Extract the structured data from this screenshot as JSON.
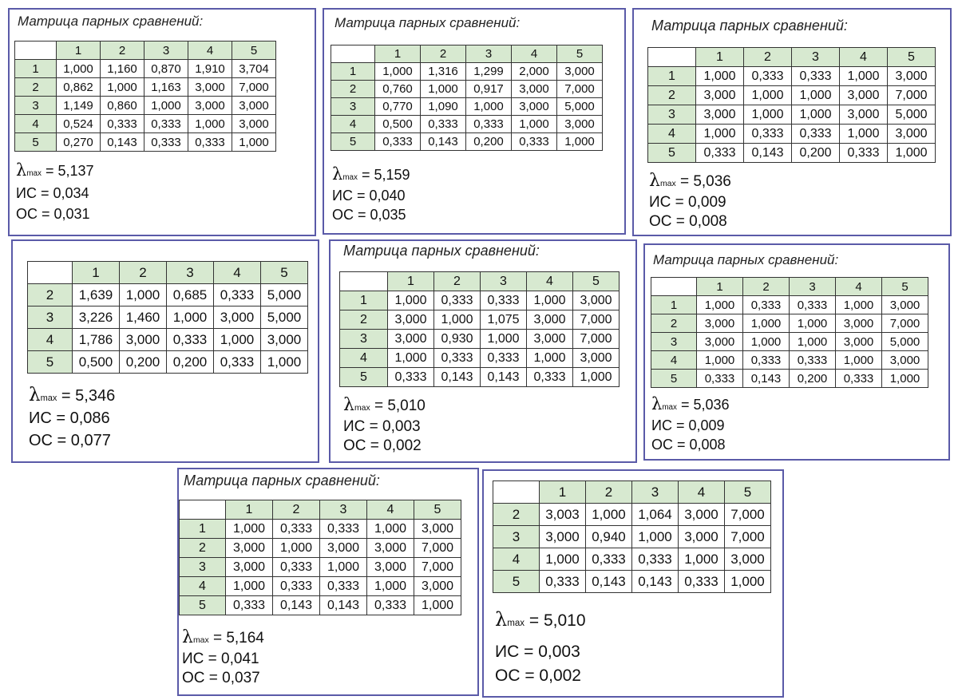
{
  "panels": [
    {
      "title": "Матрица парных сравнений:",
      "header": [
        "1",
        "2",
        "3",
        "4",
        "5"
      ],
      "rows": [
        {
          "label": "1",
          "cells": [
            "1,000",
            "1,160",
            "0,870",
            "1,910",
            "3,704"
          ]
        },
        {
          "label": "2",
          "cells": [
            "0,862",
            "1,000",
            "1,163",
            "3,000",
            "7,000"
          ]
        },
        {
          "label": "3",
          "cells": [
            "1,149",
            "0,860",
            "1,000",
            "3,000",
            "3,000"
          ]
        },
        {
          "label": "4",
          "cells": [
            "0,524",
            "0,333",
            "0,333",
            "1,000",
            "3,000"
          ]
        },
        {
          "label": "5",
          "cells": [
            "0,270",
            "0,143",
            "0,333",
            "0,333",
            "1,000"
          ]
        }
      ],
      "lambda_symbol": "λ",
      "lambda_sub": "max",
      "lambda": "= 5,137",
      "is": "ИС = 0,034",
      "os": "ОС = 0,031"
    },
    {
      "title": "Матрица парных сравнений:",
      "header": [
        "1",
        "2",
        "3",
        "4",
        "5"
      ],
      "rows": [
        {
          "label": "1",
          "cells": [
            "1,000",
            "1,316",
            "1,299",
            "2,000",
            "3,000"
          ]
        },
        {
          "label": "2",
          "cells": [
            "0,760",
            "1,000",
            "0,917",
            "3,000",
            "7,000"
          ]
        },
        {
          "label": "3",
          "cells": [
            "0,770",
            "1,090",
            "1,000",
            "3,000",
            "5,000"
          ]
        },
        {
          "label": "4",
          "cells": [
            "0,500",
            "0,333",
            "0,333",
            "1,000",
            "3,000"
          ]
        },
        {
          "label": "5",
          "cells": [
            "0,333",
            "0,143",
            "0,200",
            "0,333",
            "1,000"
          ]
        }
      ],
      "lambda_symbol": "λ",
      "lambda_sub": "max",
      "lambda": "= 5,159",
      "is": "ИС = 0,040",
      "os": "ОС = 0,035"
    },
    {
      "title": "Матрица парных сравнений:",
      "header": [
        "1",
        "2",
        "3",
        "4",
        "5"
      ],
      "rows": [
        {
          "label": "1",
          "cells": [
            "1,000",
            "0,333",
            "0,333",
            "1,000",
            "3,000"
          ]
        },
        {
          "label": "2",
          "cells": [
            "3,000",
            "1,000",
            "1,000",
            "3,000",
            "7,000"
          ]
        },
        {
          "label": "3",
          "cells": [
            "3,000",
            "1,000",
            "1,000",
            "3,000",
            "5,000"
          ]
        },
        {
          "label": "4",
          "cells": [
            "1,000",
            "0,333",
            "0,333",
            "1,000",
            "3,000"
          ]
        },
        {
          "label": "5",
          "cells": [
            "0,333",
            "0,143",
            "0,200",
            "0,333",
            "1,000"
          ]
        }
      ],
      "lambda_symbol": "λ",
      "lambda_sub": "max",
      "lambda": "= 5,036",
      "is": "ИС = 0,009",
      "os": "ОС = 0,008"
    },
    {
      "title": "",
      "header": [
        "1",
        "2",
        "3",
        "4",
        "5"
      ],
      "rows": [
        {
          "label": "2",
          "cells": [
            "1,639",
            "1,000",
            "0,685",
            "0,333",
            "5,000"
          ]
        },
        {
          "label": "3",
          "cells": [
            "3,226",
            "1,460",
            "1,000",
            "3,000",
            "5,000"
          ]
        },
        {
          "label": "4",
          "cells": [
            "1,786",
            "3,000",
            "0,333",
            "1,000",
            "3,000"
          ]
        },
        {
          "label": "5",
          "cells": [
            "0,500",
            "0,200",
            "0,200",
            "0,333",
            "1,000"
          ]
        }
      ],
      "lambda_symbol": "λ",
      "lambda_sub": "max",
      "lambda": "= 5,346",
      "is": "ИС = 0,086",
      "os": "ОС = 0,077"
    },
    {
      "title": "Матрица парных сравнений:",
      "header": [
        "1",
        "2",
        "3",
        "4",
        "5"
      ],
      "rows": [
        {
          "label": "1",
          "cells": [
            "1,000",
            "0,333",
            "0,333",
            "1,000",
            "3,000"
          ]
        },
        {
          "label": "2",
          "cells": [
            "3,000",
            "1,000",
            "1,075",
            "3,000",
            "7,000"
          ]
        },
        {
          "label": "3",
          "cells": [
            "3,000",
            "0,930",
            "1,000",
            "3,000",
            "7,000"
          ]
        },
        {
          "label": "4",
          "cells": [
            "1,000",
            "0,333",
            "0,333",
            "1,000",
            "3,000"
          ]
        },
        {
          "label": "5",
          "cells": [
            "0,333",
            "0,143",
            "0,143",
            "0,333",
            "1,000"
          ]
        }
      ],
      "lambda_symbol": "λ",
      "lambda_sub": "max",
      "lambda": "= 5,010",
      "is": "ИС = 0,003",
      "os": "ОС = 0,002"
    },
    {
      "title": "Матрица парных сравнений:",
      "header": [
        "1",
        "2",
        "3",
        "4",
        "5"
      ],
      "rows": [
        {
          "label": "1",
          "cells": [
            "1,000",
            "0,333",
            "0,333",
            "1,000",
            "3,000"
          ]
        },
        {
          "label": "2",
          "cells": [
            "3,000",
            "1,000",
            "1,000",
            "3,000",
            "7,000"
          ]
        },
        {
          "label": "3",
          "cells": [
            "3,000",
            "1,000",
            "1,000",
            "3,000",
            "5,000"
          ]
        },
        {
          "label": "4",
          "cells": [
            "1,000",
            "0,333",
            "0,333",
            "1,000",
            "3,000"
          ]
        },
        {
          "label": "5",
          "cells": [
            "0,333",
            "0,143",
            "0,200",
            "0,333",
            "1,000"
          ]
        }
      ],
      "lambda_symbol": "λ",
      "lambda_sub": "max",
      "lambda": "= 5,036",
      "is": "ИС = 0,009",
      "os": "ОС = 0,008"
    },
    {
      "title": "Матрица парных сравнений:",
      "header": [
        "1",
        "2",
        "3",
        "4",
        "5"
      ],
      "rows": [
        {
          "label": "1",
          "cells": [
            "1,000",
            "0,333",
            "0,333",
            "1,000",
            "3,000"
          ]
        },
        {
          "label": "2",
          "cells": [
            "3,000",
            "1,000",
            "3,000",
            "3,000",
            "7,000"
          ]
        },
        {
          "label": "3",
          "cells": [
            "3,000",
            "0,333",
            "1,000",
            "3,000",
            "7,000"
          ]
        },
        {
          "label": "4",
          "cells": [
            "1,000",
            "0,333",
            "0,333",
            "1,000",
            "3,000"
          ]
        },
        {
          "label": "5",
          "cells": [
            "0,333",
            "0,143",
            "0,143",
            "0,333",
            "1,000"
          ]
        }
      ],
      "lambda_symbol": "λ",
      "lambda_sub": "max",
      "lambda": "= 5,164",
      "is": "ИС = 0,041",
      "os": "ОС = 0,037"
    },
    {
      "title": "",
      "header": [
        "1",
        "2",
        "3",
        "4",
        "5"
      ],
      "rows": [
        {
          "label": "2",
          "cells": [
            "3,003",
            "1,000",
            "1,064",
            "3,000",
            "7,000"
          ]
        },
        {
          "label": "3",
          "cells": [
            "3,000",
            "0,940",
            "1,000",
            "3,000",
            "7,000"
          ]
        },
        {
          "label": "4",
          "cells": [
            "1,000",
            "0,333",
            "0,333",
            "1,000",
            "3,000"
          ]
        },
        {
          "label": "5",
          "cells": [
            "0,333",
            "0,143",
            "0,143",
            "0,333",
            "1,000"
          ]
        }
      ],
      "lambda_symbol": "λ",
      "lambda_sub": "max",
      "lambda": "= 5,010",
      "is": "ИС = 0,003",
      "os": "ОС = 0,002"
    }
  ]
}
